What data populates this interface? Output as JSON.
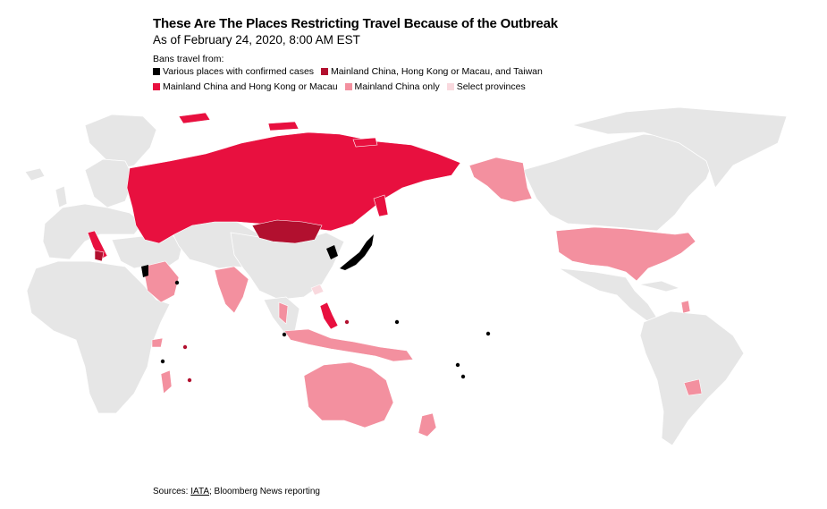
{
  "title": "These Are The Places Restricting Travel Because of the Outbreak",
  "subtitle": "As of February 24, 2020, 8:00 AM EST",
  "legend": {
    "heading": "Bans travel from:",
    "items": [
      {
        "label": "Various places with confirmed cases",
        "color": "#000000"
      },
      {
        "label": "Mainland China, Hong Kong or Macau, and Taiwan",
        "color": "#b2102f"
      },
      {
        "label": "Mainland China and Hong Kong or Macau",
        "color": "#e8103f"
      },
      {
        "label": "Mainland China only",
        "color": "#f3909f"
      },
      {
        "label": "Select provinces",
        "color": "#f9d9de"
      }
    ]
  },
  "colors": {
    "land": "#e6e6e6",
    "border": "#ffffff"
  },
  "sources": {
    "prefix": "Sources: ",
    "link": "IATA",
    "rest": "; Bloomberg News reporting"
  }
}
